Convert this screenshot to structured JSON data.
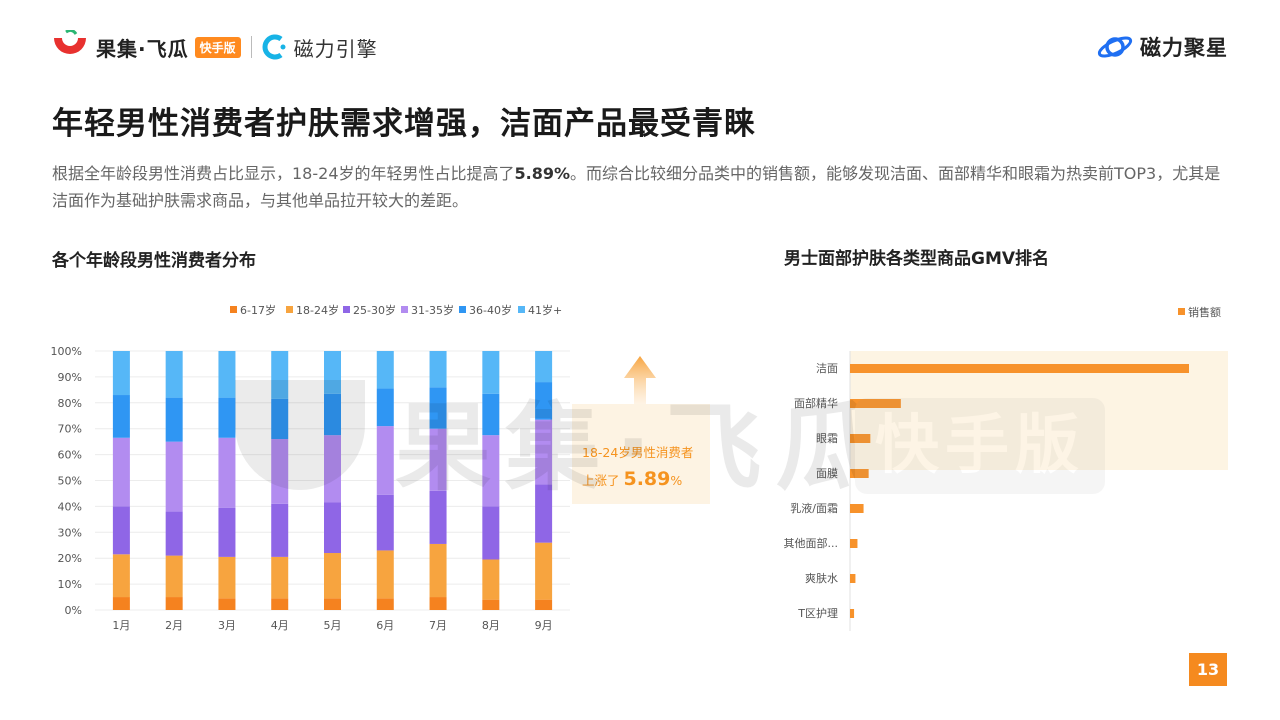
{
  "header": {
    "brand_name": "果集·飞瓜",
    "brand_badge": "快手版",
    "partner_name": "磁力引擎",
    "right_brand": "磁力聚星"
  },
  "page_title": "年轻男性消费者护肤需求增强，洁面产品最受青睐",
  "description": {
    "part1": "根据全年龄段男性消费占比显示，18-24岁的年轻男性占比提高了",
    "highlight": "5.89%",
    "part2": "。而综合比较细分品类中的销售额，能够发现洁面、面部精华和眼霜为热卖前TOP3，尤其是洁面作为基础护肤需求商品，与其他单品拉开较大的差距。"
  },
  "sections": {
    "left_title": "各个年龄段男性消费者分布",
    "right_title": "男士面部护肤各类型商品GMV排名"
  },
  "watermark": {
    "text": "果集·飞瓜",
    "badge": "快手版"
  },
  "annotation": {
    "line1": "18-24岁男性消费者",
    "line2_prefix": "上涨了 ",
    "line2_value": "5.89",
    "line2_suffix": "%"
  },
  "page_number": "13",
  "colors": {
    "accent": "#f58a1f",
    "s1": "#f5821f",
    "s2": "#f7a43f",
    "s3": "#8f66e6",
    "s4": "#b28cf0",
    "s5": "#2f96f3",
    "s6": "#56b7f7",
    "bar": "#f7922b",
    "bar_bg": "#fdf4e3"
  },
  "chart_data": [
    {
      "type": "bar",
      "stacked": true,
      "categories": [
        "1月",
        "2月",
        "3月",
        "4月",
        "5月",
        "6月",
        "7月",
        "8月",
        "9月"
      ],
      "series": [
        {
          "name": "6-17岁",
          "values": [
            5,
            5,
            4.5,
            4.5,
            4.5,
            4.5,
            5,
            4,
            4
          ]
        },
        {
          "name": "18-24岁",
          "values": [
            16.5,
            16,
            16,
            16,
            17.5,
            18.5,
            20.5,
            15.5,
            22
          ]
        },
        {
          "name": "25-30岁",
          "values": [
            18.5,
            17,
            19,
            20.5,
            19.5,
            21.5,
            20.5,
            20.5,
            22.5
          ]
        },
        {
          "name": "31-35岁",
          "values": [
            26.5,
            27,
            27,
            25,
            26,
            26.5,
            24,
            27.5,
            25
          ]
        },
        {
          "name": "36-40岁",
          "values": [
            16.5,
            17,
            15.5,
            15.5,
            16,
            14.5,
            16,
            16,
            14.5
          ]
        },
        {
          "name": "41岁+",
          "values": [
            17,
            18,
            18,
            18.5,
            16.5,
            14.5,
            14,
            16.5,
            12
          ]
        }
      ],
      "yticks": [
        "0%",
        "10%",
        "20%",
        "30%",
        "40%",
        "50%",
        "60%",
        "70%",
        "80%",
        "90%",
        "100%"
      ],
      "ylim": [
        0,
        100
      ],
      "legend": "top"
    },
    {
      "type": "bar",
      "orientation": "horizontal",
      "categories": [
        "洁面",
        "面部精华",
        "眼霜",
        "面膜",
        "乳液/面霜",
        "其他面部...",
        "爽肤水",
        "T区护理"
      ],
      "series": [
        {
          "name": "销售额",
          "values": [
            100,
            15,
            6,
            5.5,
            4,
            2.2,
            1.6,
            1.2
          ]
        }
      ],
      "legend": "top-right"
    }
  ]
}
